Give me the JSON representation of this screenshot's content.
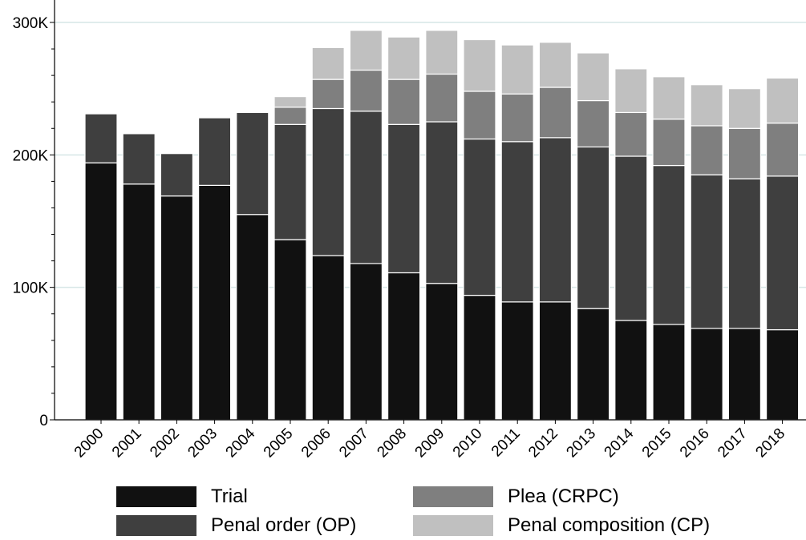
{
  "chart_data": {
    "type": "bar",
    "stacked": true,
    "categories": [
      "2000",
      "2001",
      "2002",
      "2003",
      "2004",
      "2005",
      "2006",
      "2007",
      "2008",
      "2009",
      "2010",
      "2011",
      "2012",
      "2013",
      "2014",
      "2015",
      "2016",
      "2017",
      "2018"
    ],
    "series": [
      {
        "name": "Trial",
        "color": "#111111",
        "values": [
          194000,
          178000,
          169000,
          177000,
          155000,
          136000,
          124000,
          118000,
          111000,
          103000,
          94000,
          89000,
          89000,
          84000,
          75000,
          72000,
          69000,
          69000,
          68000
        ]
      },
      {
        "name": "Penal order (OP)",
        "color": "#3f3f3f",
        "values": [
          37000,
          38000,
          32000,
          51000,
          77000,
          87000,
          111000,
          115000,
          112000,
          122000,
          118000,
          121000,
          124000,
          122000,
          124000,
          120000,
          116000,
          113000,
          116000
        ]
      },
      {
        "name": "Plea (CRPC)",
        "color": "#7f7f7f",
        "values": [
          0,
          0,
          0,
          0,
          0,
          13000,
          22000,
          31000,
          34000,
          36000,
          36000,
          36000,
          38000,
          35000,
          33000,
          35000,
          37000,
          38000,
          40000
        ]
      },
      {
        "name": "Penal composition (CP)",
        "color": "#c0c0c0",
        "values": [
          0,
          0,
          0,
          0,
          0,
          8000,
          24000,
          30000,
          32000,
          33000,
          39000,
          37000,
          34000,
          36000,
          33000,
          32000,
          31000,
          30000,
          34000
        ]
      }
    ],
    "yticks": [
      "0",
      "100K",
      "200K",
      "300K"
    ],
    "ylim": [
      0,
      300000
    ],
    "grid": true,
    "legend_position": "bottom"
  },
  "legend": {
    "trial": "Trial",
    "penal_order": "Penal order (OP)",
    "plea": "Plea (CRPC)",
    "penal_composition": "Penal composition (CP)"
  }
}
